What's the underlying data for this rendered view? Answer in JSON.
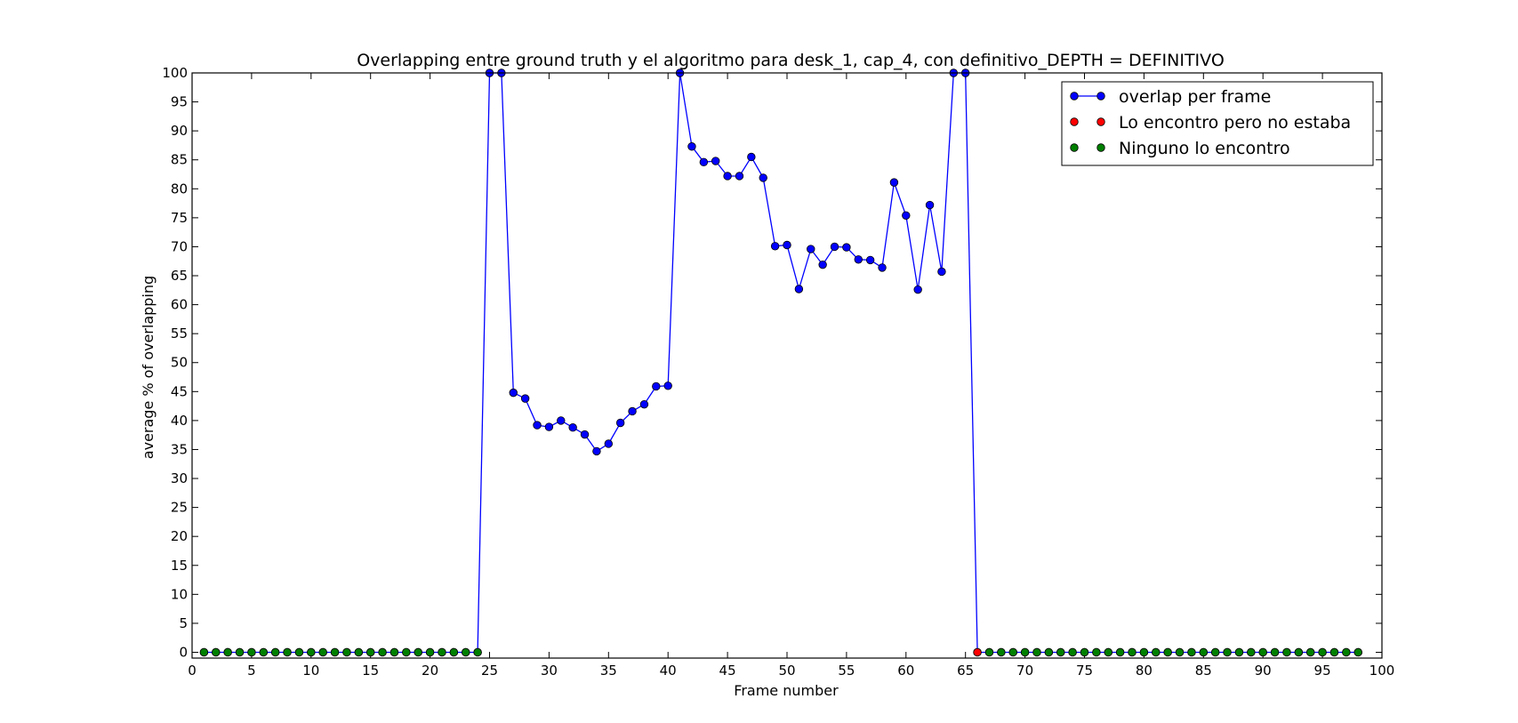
{
  "chart_data": {
    "type": "line",
    "title": "Overlapping entre ground truth y el algoritmo para desk_1, cap_4, con definitivo_DEPTH = DEFINITIVO",
    "xlabel": "Frame number",
    "ylabel": "average % of overlapping",
    "xlim": [
      0,
      100
    ],
    "ylim": [
      -1,
      100
    ],
    "xticks": [
      0,
      5,
      10,
      15,
      20,
      25,
      30,
      35,
      40,
      45,
      50,
      55,
      60,
      65,
      70,
      75,
      80,
      85,
      90,
      95,
      100
    ],
    "yticks": [
      0,
      5,
      10,
      15,
      20,
      25,
      30,
      35,
      40,
      45,
      50,
      55,
      60,
      65,
      70,
      75,
      80,
      85,
      90,
      95,
      100
    ],
    "grid": false,
    "legend_position": "top-right",
    "series": [
      {
        "name": "overlap per frame",
        "color": "#0000ff",
        "style": "line-marker",
        "x": [
          1,
          2,
          3,
          4,
          5,
          6,
          7,
          8,
          9,
          10,
          11,
          12,
          13,
          14,
          15,
          16,
          17,
          18,
          19,
          20,
          21,
          22,
          23,
          24,
          25,
          26,
          27,
          28,
          29,
          30,
          31,
          32,
          33,
          34,
          35,
          36,
          37,
          38,
          39,
          40,
          41,
          42,
          43,
          44,
          45,
          46,
          47,
          48,
          49,
          50,
          51,
          52,
          53,
          54,
          55,
          56,
          57,
          58,
          59,
          60,
          61,
          62,
          63,
          64,
          65,
          66,
          67,
          68,
          69,
          70,
          71,
          72,
          73,
          74,
          75,
          76,
          77,
          78,
          79,
          80,
          81,
          82,
          83,
          84,
          85,
          86,
          87,
          88,
          89,
          90,
          91,
          92,
          93,
          94,
          95,
          96,
          97,
          98
        ],
        "values": [
          0,
          0,
          0,
          0,
          0,
          0,
          0,
          0,
          0,
          0,
          0,
          0,
          0,
          0,
          0,
          0,
          0,
          0,
          0,
          0,
          0,
          0,
          0,
          0,
          100,
          100,
          44.8,
          43.8,
          39.2,
          38.9,
          40.0,
          38.8,
          37.6,
          34.7,
          36.0,
          39.6,
          41.6,
          42.8,
          45.9,
          46.0,
          100,
          87.3,
          84.6,
          84.8,
          82.2,
          82.2,
          85.5,
          81.9,
          70.1,
          70.3,
          62.7,
          69.6,
          66.9,
          70.0,
          69.9,
          67.8,
          67.7,
          66.4,
          81.1,
          75.4,
          62.6,
          77.2,
          65.7,
          100,
          100,
          0,
          0,
          0,
          0,
          0,
          0,
          0,
          0,
          0,
          0,
          0,
          0,
          0,
          0,
          0,
          0,
          0,
          0,
          0,
          0,
          0,
          0,
          0,
          0,
          0,
          0,
          0,
          0,
          0,
          0,
          0,
          0,
          0
        ]
      },
      {
        "name": "Lo encontro pero no estaba",
        "color": "#ff0000",
        "style": "marker",
        "x": [
          66
        ],
        "values": [
          0
        ]
      },
      {
        "name": "Ninguno lo encontro",
        "color": "#008000",
        "style": "marker",
        "x": [
          1,
          2,
          3,
          4,
          5,
          6,
          7,
          8,
          9,
          10,
          11,
          12,
          13,
          14,
          15,
          16,
          17,
          18,
          19,
          20,
          21,
          22,
          23,
          24,
          67,
          68,
          69,
          70,
          71,
          72,
          73,
          74,
          75,
          76,
          77,
          78,
          79,
          80,
          81,
          82,
          83,
          84,
          85,
          86,
          87,
          88,
          89,
          90,
          91,
          92,
          93,
          94,
          95,
          96,
          97,
          98
        ],
        "values": [
          0,
          0,
          0,
          0,
          0,
          0,
          0,
          0,
          0,
          0,
          0,
          0,
          0,
          0,
          0,
          0,
          0,
          0,
          0,
          0,
          0,
          0,
          0,
          0,
          0,
          0,
          0,
          0,
          0,
          0,
          0,
          0,
          0,
          0,
          0,
          0,
          0,
          0,
          0,
          0,
          0,
          0,
          0,
          0,
          0,
          0,
          0,
          0,
          0,
          0,
          0,
          0,
          0,
          0,
          0,
          0
        ]
      }
    ]
  }
}
